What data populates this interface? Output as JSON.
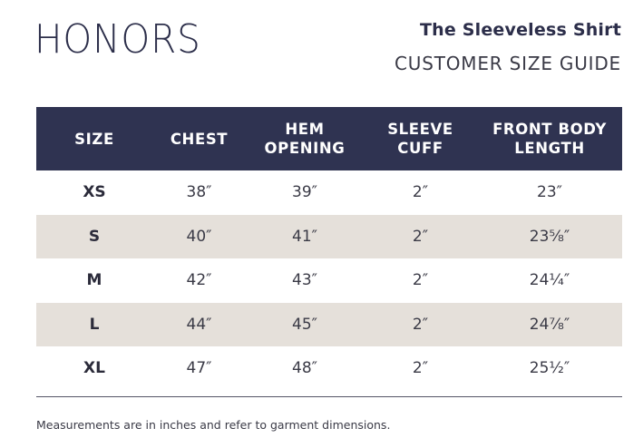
{
  "brand": "HONORS",
  "product_title": "The Sleeveless Shirt",
  "guide_title": "CUSTOMER SIZE GUIDE",
  "table": {
    "headers": [
      "SIZE",
      "CHEST",
      "HEM\nOPENING",
      "SLEEVE\nCUFF",
      "FRONT BODY\nLENGTH"
    ],
    "rows": [
      [
        "XS",
        "38″",
        "39″",
        "2″",
        "23″"
      ],
      [
        "S",
        "40″",
        "41″",
        "2″",
        "23⅝″"
      ],
      [
        "M",
        "42″",
        "43″",
        "2″",
        "24¼″"
      ],
      [
        "L",
        "44″",
        "45″",
        "2″",
        "24⅞″"
      ],
      [
        "XL",
        "47″",
        "48″",
        "2″",
        "25½″"
      ]
    ]
  },
  "note": "Measurements are in inches and refer to garment dimensions."
}
